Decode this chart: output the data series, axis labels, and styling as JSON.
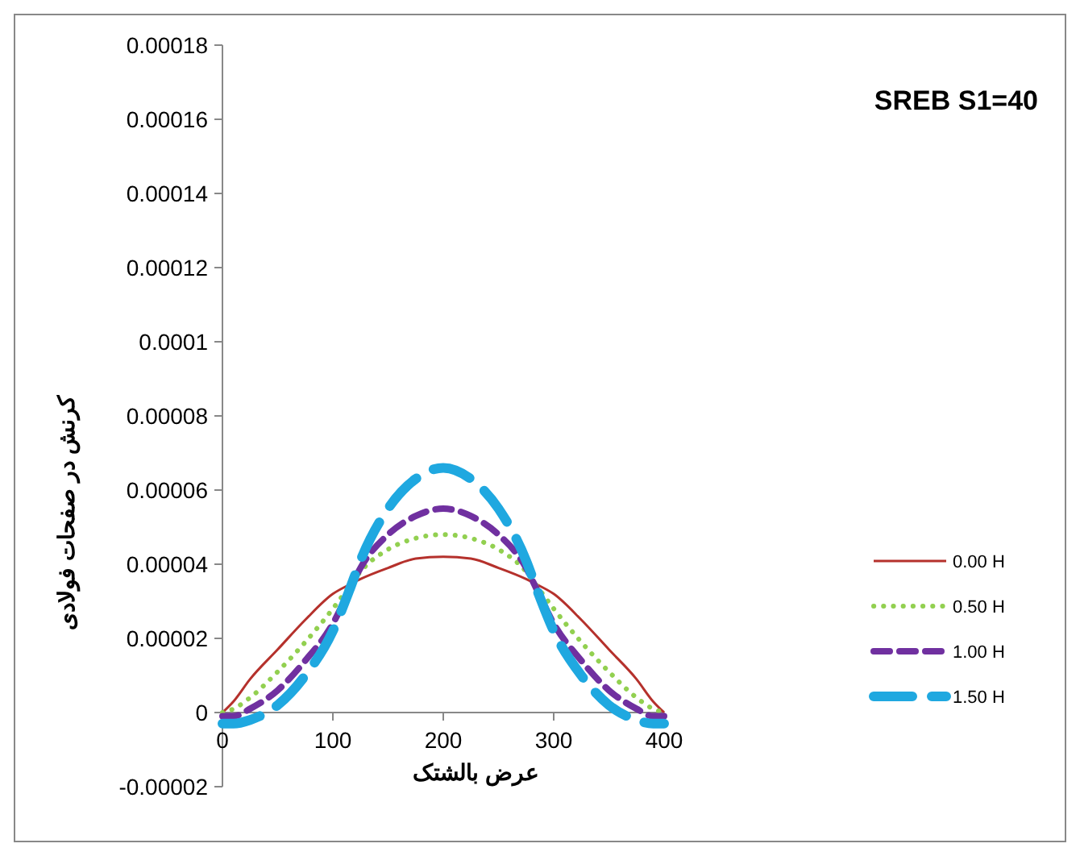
{
  "chart_data": {
    "type": "line",
    "title": "SREB S1=40",
    "xlabel": "عرض بالشتک",
    "ylabel": "کرنش در صفحات فولادی",
    "x": [
      0,
      10,
      25,
      50,
      75,
      100,
      115,
      125,
      150,
      175,
      200,
      225,
      250,
      275,
      285,
      300,
      325,
      350,
      375,
      390,
      400
    ],
    "xlim": [
      0,
      400
    ],
    "xticks": [
      0,
      100,
      200,
      300,
      400
    ],
    "ylim": [
      -2e-05,
      0.00018
    ],
    "yticks": [
      {
        "value": -2e-05,
        "label": "-0.00002"
      },
      0,
      {
        "value": 2e-05,
        "label": "0.00002"
      },
      {
        "value": 4e-05,
        "label": "0.00004"
      },
      {
        "value": 6e-05,
        "label": "0.00006"
      },
      {
        "value": 8e-05,
        "label": "0.00008"
      },
      {
        "value": 0.0001,
        "label": "0.0001"
      },
      {
        "value": 0.00012,
        "label": "0.00012"
      },
      {
        "value": 0.00014,
        "label": "0.00014"
      },
      {
        "value": 0.00016,
        "label": "0.00016"
      },
      {
        "value": 0.00018,
        "label": "0.00018"
      }
    ],
    "grid": false,
    "legend": "right",
    "marker": "none",
    "series": [
      {
        "name": "0.00 H",
        "color": "#b5312c",
        "line_style": "solid",
        "values": [
          0,
          3e-06,
          9e-06,
          1.7e-05,
          2.5e-05,
          3.2e-05,
          3.45e-05,
          3.6e-05,
          3.9e-05,
          4.15e-05,
          4.2e-05,
          4.15e-05,
          3.9e-05,
          3.6e-05,
          3.45e-05,
          3.2e-05,
          2.5e-05,
          1.7e-05,
          9e-06,
          3e-06,
          0
        ]
      },
      {
        "name": "0.50 H",
        "color": "#92d050",
        "line_style": "dotted",
        "values": [
          0,
          1e-06,
          4e-06,
          1.1e-05,
          1.9e-05,
          2.8e-05,
          3.4e-05,
          3.8e-05,
          4.4e-05,
          4.7e-05,
          4.8e-05,
          4.7e-05,
          4.4e-05,
          3.8e-05,
          3.4e-05,
          2.8e-05,
          1.9e-05,
          1.1e-05,
          4e-06,
          1e-06,
          0
        ]
      },
      {
        "name": "1.00 H",
        "color": "#7030a0",
        "line_style": "dashed",
        "values": [
          -1e-06,
          -1e-06,
          1e-06,
          6e-06,
          1.4e-05,
          2.4e-05,
          3.3e-05,
          3.9e-05,
          4.8e-05,
          5.3e-05,
          5.5e-05,
          5.3e-05,
          4.8e-05,
          3.9e-05,
          3.3e-05,
          2.4e-05,
          1.4e-05,
          6e-06,
          1e-06,
          -1e-06,
          -1e-06
        ]
      },
      {
        "name": "1.50 H",
        "color": "#1fa8e0",
        "line_style": "dashed",
        "values": [
          -3e-06,
          -3e-06,
          -2e-06,
          2e-06,
          1e-05,
          2.2e-05,
          3.3e-05,
          4.1e-05,
          5.5e-05,
          6.3e-05,
          6.6e-05,
          6.3e-05,
          5.5e-05,
          4.1e-05,
          3.3e-05,
          2.2e-05,
          1e-05,
          2e-06,
          -2e-06,
          -3e-06,
          -3e-06
        ]
      }
    ]
  }
}
